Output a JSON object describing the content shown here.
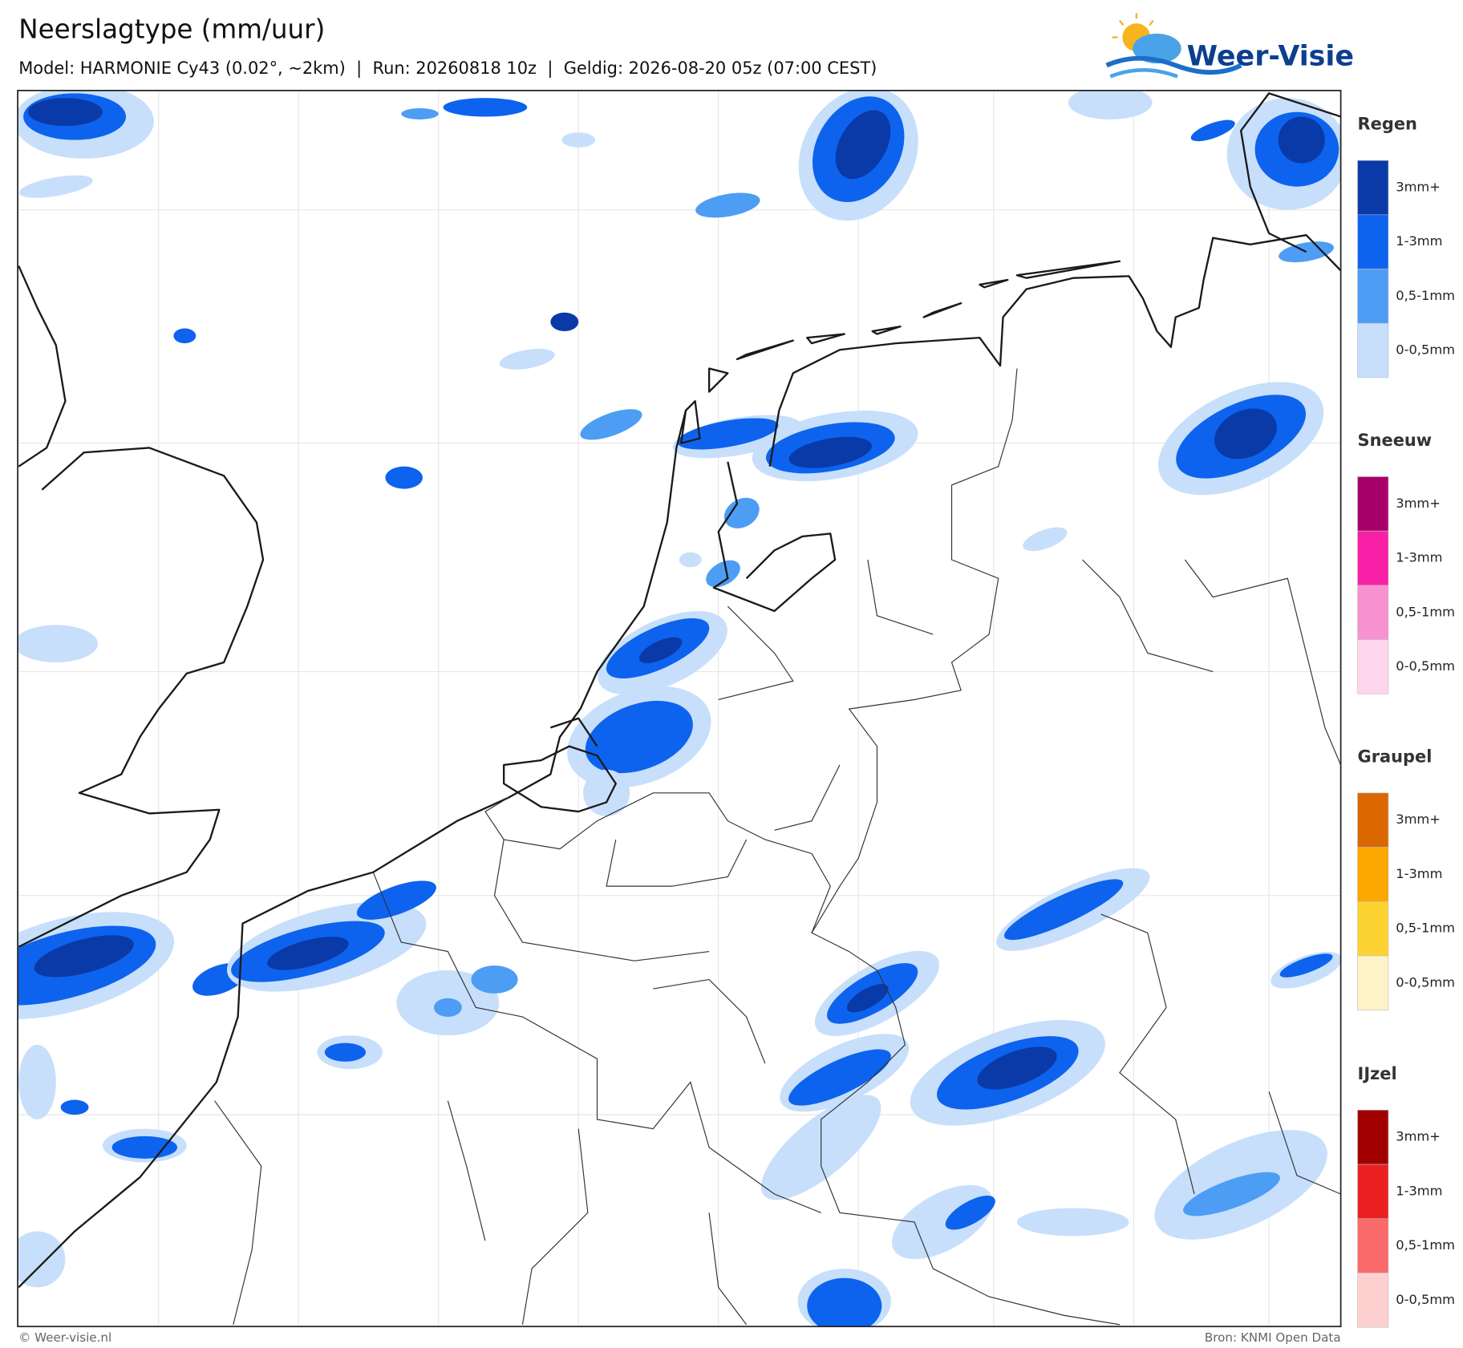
{
  "header": {
    "title": "Neerslagtype (mm/uur)",
    "subtitle": "Model: HARMONIE Cy43 (0.02°, ~2km)  |  Run: 20260818 10z  |  Geldig: 2026-08-20 05z (07:00 CEST)"
  },
  "logo": {
    "text": "Weer-Visie"
  },
  "legend": [
    {
      "title": "Regen",
      "items": [
        {
          "label": "3mm+",
          "color": "#0a3aa8"
        },
        {
          "label": "1-3mm",
          "color": "#0d63ee"
        },
        {
          "label": "0,5-1mm",
          "color": "#4d9df5"
        },
        {
          "label": "0-0,5mm",
          "color": "#c7dffb"
        }
      ]
    },
    {
      "title": "Sneeuw",
      "items": [
        {
          "label": "3mm+",
          "color": "#a8006a"
        },
        {
          "label": "1-3mm",
          "color": "#f820a6"
        },
        {
          "label": "0,5-1mm",
          "color": "#f891cf"
        },
        {
          "label": "0-0,5mm",
          "color": "#fdd5ec"
        }
      ]
    },
    {
      "title": "Graupel",
      "items": [
        {
          "label": "3mm+",
          "color": "#db6700"
        },
        {
          "label": "1-3mm",
          "color": "#fca600"
        },
        {
          "label": "0,5-1mm",
          "color": "#fdd332"
        },
        {
          "label": "0-0,5mm",
          "color": "#fdf3c7"
        }
      ]
    },
    {
      "title": "IJzel",
      "items": [
        {
          "label": "3mm+",
          "color": "#a00000"
        },
        {
          "label": "1-3mm",
          "color": "#eb2020"
        },
        {
          "label": "0,5-1mm",
          "color": "#fb6a6a"
        },
        {
          "label": "0-0,5mm",
          "color": "#fdd0d0"
        }
      ]
    }
  ],
  "footer": {
    "left": "© Weer-visie.nl",
    "right": "Bron: KNMI Open Data"
  }
}
